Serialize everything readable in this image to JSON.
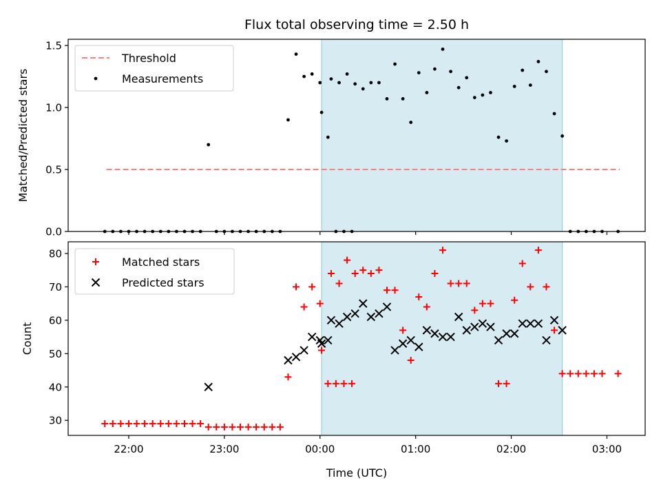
{
  "chart_data": [
    {
      "type": "scatter",
      "title": "Flux total observing time = 2.50 h",
      "xlabel": "",
      "ylabel": "Matched/Predicted stars",
      "ylim": [
        0,
        1.55
      ],
      "yticks": [
        "0.0",
        "0.5",
        "1.0",
        "1.5"
      ],
      "ytick_values": [
        0,
        0.5,
        1.0,
        1.5
      ],
      "shaded_span": [
        "00:01",
        "02:32"
      ],
      "shade_color": "#add8e6",
      "legend": {
        "placement": "upper-left",
        "entries": [
          "Threshold",
          "Measurements"
        ]
      },
      "threshold": {
        "name": "Threshold",
        "value": 0.5,
        "x_range": [
          "21:46",
          "03:08"
        ],
        "color": "#ff7f7f",
        "style": "dashed"
      },
      "series": [
        {
          "name": "Measurements",
          "marker": "dot",
          "color": "#000000",
          "points": [
            [
              "21:45",
              0
            ],
            [
              "21:50",
              0
            ],
            [
              "21:55",
              0
            ],
            [
              "22:00",
              0
            ],
            [
              "22:05",
              0
            ],
            [
              "22:10",
              0
            ],
            [
              "22:15",
              0
            ],
            [
              "22:20",
              0
            ],
            [
              "22:25",
              0
            ],
            [
              "22:30",
              0
            ],
            [
              "22:35",
              0
            ],
            [
              "22:40",
              0
            ],
            [
              "22:45",
              0
            ],
            [
              "22:50",
              0.7
            ],
            [
              "22:55",
              0
            ],
            [
              "23:00",
              0
            ],
            [
              "23:05",
              0
            ],
            [
              "23:10",
              0
            ],
            [
              "23:15",
              0
            ],
            [
              "23:20",
              0
            ],
            [
              "23:25",
              0
            ],
            [
              "23:30",
              0
            ],
            [
              "23:35",
              0
            ],
            [
              "23:40",
              0.9
            ],
            [
              "23:45",
              1.43
            ],
            [
              "23:50",
              1.25
            ],
            [
              "23:55",
              1.27
            ],
            [
              "00:00",
              1.2
            ],
            [
              "00:05",
              0.76
            ],
            [
              "00:10",
              0
            ],
            [
              "00:15",
              0
            ],
            [
              "00:20",
              0
            ],
            [
              "00:01",
              0.96
            ],
            [
              "00:07",
              1.23
            ],
            [
              "00:12",
              1.2
            ],
            [
              "00:17",
              1.27
            ],
            [
              "00:22",
              1.19
            ],
            [
              "00:27",
              1.15
            ],
            [
              "00:32",
              1.2
            ],
            [
              "00:37",
              1.2
            ],
            [
              "00:42",
              1.07
            ],
            [
              "00:47",
              1.35
            ],
            [
              "00:52",
              1.07
            ],
            [
              "00:57",
              0.88
            ],
            [
              "01:02",
              1.28
            ],
            [
              "01:07",
              1.12
            ],
            [
              "01:12",
              1.31
            ],
            [
              "01:17",
              1.47
            ],
            [
              "01:22",
              1.29
            ],
            [
              "01:27",
              1.16
            ],
            [
              "01:32",
              1.24
            ],
            [
              "01:37",
              1.08
            ],
            [
              "01:42",
              1.1
            ],
            [
              "01:47",
              1.12
            ],
            [
              "01:52",
              0.76
            ],
            [
              "01:57",
              0.73
            ],
            [
              "02:02",
              1.17
            ],
            [
              "02:07",
              1.3
            ],
            [
              "02:12",
              1.18
            ],
            [
              "02:17",
              1.37
            ],
            [
              "02:22",
              1.29
            ],
            [
              "02:27",
              0.95
            ],
            [
              "02:32",
              0.77
            ],
            [
              "02:37",
              0
            ],
            [
              "02:42",
              0
            ],
            [
              "02:47",
              0
            ],
            [
              "02:52",
              0
            ],
            [
              "02:57",
              0
            ],
            [
              "03:07",
              0
            ]
          ]
        }
      ]
    },
    {
      "type": "scatter",
      "title": "",
      "xlabel": "Time (UTC)",
      "ylabel": "Count",
      "ylim": [
        25.5,
        83.5
      ],
      "yticks": [
        "30",
        "40",
        "50",
        "60",
        "70",
        "80"
      ],
      "ytick_values": [
        30,
        40,
        50,
        60,
        70,
        80
      ],
      "xticks": [
        "22:00",
        "23:00",
        "00:00",
        "01:00",
        "02:00",
        "03:00"
      ],
      "shaded_span": [
        "00:01",
        "02:32"
      ],
      "shade_color": "#add8e6",
      "legend": {
        "placement": "upper-left",
        "entries": [
          "Matched stars",
          "Predicted stars"
        ]
      },
      "series": [
        {
          "name": "Matched stars",
          "marker": "plus",
          "color": "#ff0000",
          "points": [
            [
              "21:45",
              29
            ],
            [
              "21:50",
              29
            ],
            [
              "21:55",
              29
            ],
            [
              "22:00",
              29
            ],
            [
              "22:05",
              29
            ],
            [
              "22:10",
              29
            ],
            [
              "22:15",
              29
            ],
            [
              "22:20",
              29
            ],
            [
              "22:25",
              29
            ],
            [
              "22:30",
              29
            ],
            [
              "22:35",
              29
            ],
            [
              "22:40",
              29
            ],
            [
              "22:45",
              29
            ],
            [
              "22:50",
              28
            ],
            [
              "22:55",
              28
            ],
            [
              "23:00",
              28
            ],
            [
              "23:05",
              28
            ],
            [
              "23:10",
              28
            ],
            [
              "23:15",
              28
            ],
            [
              "23:20",
              28
            ],
            [
              "23:25",
              28
            ],
            [
              "23:30",
              28
            ],
            [
              "23:35",
              28
            ],
            [
              "23:40",
              43
            ],
            [
              "23:45",
              70
            ],
            [
              "23:50",
              64
            ],
            [
              "23:55",
              70
            ],
            [
              "00:00",
              65
            ],
            [
              "00:05",
              41
            ],
            [
              "00:10",
              41
            ],
            [
              "00:15",
              41
            ],
            [
              "00:20",
              41
            ],
            [
              "00:01",
              51
            ],
            [
              "00:07",
              74
            ],
            [
              "00:12",
              71
            ],
            [
              "00:17",
              78
            ],
            [
              "00:22",
              74
            ],
            [
              "00:27",
              75
            ],
            [
              "00:32",
              74
            ],
            [
              "00:37",
              75
            ],
            [
              "00:42",
              69
            ],
            [
              "00:47",
              69
            ],
            [
              "00:52",
              57
            ],
            [
              "00:57",
              48
            ],
            [
              "01:02",
              67
            ],
            [
              "01:07",
              64
            ],
            [
              "01:12",
              74
            ],
            [
              "01:17",
              81
            ],
            [
              "01:22",
              71
            ],
            [
              "01:27",
              71
            ],
            [
              "01:32",
              71
            ],
            [
              "01:37",
              63
            ],
            [
              "01:42",
              65
            ],
            [
              "01:47",
              65
            ],
            [
              "01:52",
              41
            ],
            [
              "01:57",
              41
            ],
            [
              "02:02",
              66
            ],
            [
              "02:07",
              77
            ],
            [
              "02:12",
              70
            ],
            [
              "02:17",
              81
            ],
            [
              "02:22",
              70
            ],
            [
              "02:27",
              57
            ],
            [
              "02:32",
              44
            ],
            [
              "02:37",
              44
            ],
            [
              "02:42",
              44
            ],
            [
              "02:47",
              44
            ],
            [
              "02:52",
              44
            ],
            [
              "02:57",
              44
            ],
            [
              "03:07",
              44
            ]
          ]
        },
        {
          "name": "Predicted stars",
          "marker": "x",
          "color": "#000000",
          "points": [
            [
              "22:50",
              40
            ],
            [
              "23:40",
              48
            ],
            [
              "23:45",
              49
            ],
            [
              "23:50",
              51
            ],
            [
              "23:55",
              55
            ],
            [
              "00:00",
              54
            ],
            [
              "00:05",
              54
            ],
            [
              "00:01",
              53
            ],
            [
              "00:07",
              60
            ],
            [
              "00:12",
              59
            ],
            [
              "00:17",
              61
            ],
            [
              "00:22",
              62
            ],
            [
              "00:27",
              65
            ],
            [
              "00:32",
              61
            ],
            [
              "00:37",
              62
            ],
            [
              "00:42",
              64
            ],
            [
              "00:47",
              51
            ],
            [
              "00:52",
              53
            ],
            [
              "00:57",
              54
            ],
            [
              "01:02",
              52
            ],
            [
              "01:07",
              57
            ],
            [
              "01:12",
              56
            ],
            [
              "01:17",
              55
            ],
            [
              "01:22",
              55
            ],
            [
              "01:27",
              61
            ],
            [
              "01:32",
              57
            ],
            [
              "01:37",
              58
            ],
            [
              "01:42",
              59
            ],
            [
              "01:47",
              58
            ],
            [
              "01:52",
              54
            ],
            [
              "01:57",
              56
            ],
            [
              "02:02",
              56
            ],
            [
              "02:07",
              59
            ],
            [
              "02:12",
              59
            ],
            [
              "02:17",
              59
            ],
            [
              "02:22",
              54
            ],
            [
              "02:27",
              60
            ],
            [
              "02:32",
              57
            ]
          ]
        }
      ]
    }
  ]
}
